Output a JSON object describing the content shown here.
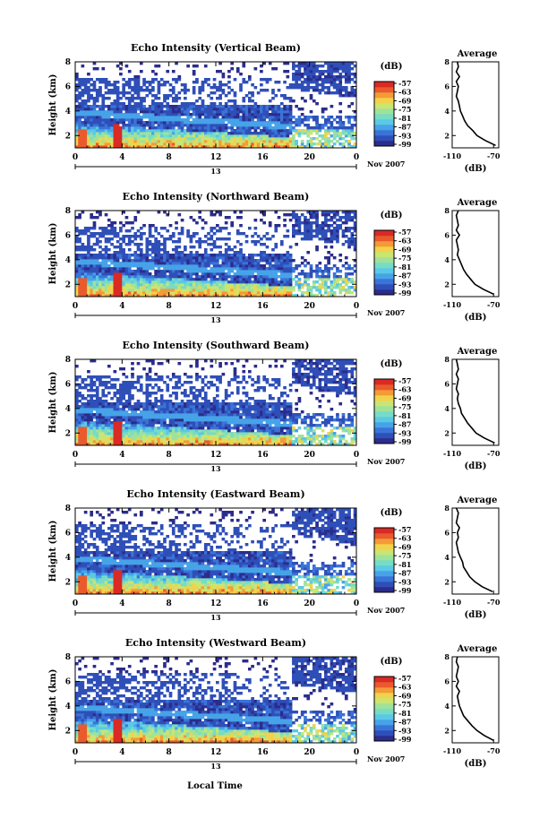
{
  "figure": {
    "common_xlabel": "Local Time",
    "date_label": "Nov 2007",
    "day_label": "13",
    "colorbar_unit": "(dB)",
    "colorbar_ticks": [
      "-57",
      "-63",
      "-69",
      "-75",
      "-81",
      "-87",
      "-93",
      "-99"
    ],
    "colorbar_colors": [
      "#2b2c8c",
      "#2f4fb8",
      "#3a74d8",
      "#47a3e8",
      "#5ac9e6",
      "#76dcc6",
      "#a0e29a",
      "#cbe572",
      "#f2d24a",
      "#f49a38",
      "#ea5a2c",
      "#d92a24"
    ],
    "profile_title": "Average",
    "profile_xlabel": "(dB)",
    "profile_xticks": [
      "-110",
      "-70"
    ],
    "profile_yticks": [
      "2",
      "4",
      "6",
      "8"
    ]
  },
  "chart_data": [
    {
      "type": "heatmap",
      "title": "Echo Intensity (Vertical Beam)",
      "ylabel": "Height (km)",
      "xlabel": "",
      "xticks": [
        "0",
        "4",
        "8",
        "12",
        "16",
        "20",
        "0"
      ],
      "yticks": [
        "2",
        "4",
        "6",
        "8"
      ],
      "xlim": [
        0,
        24
      ],
      "ylim": [
        1,
        8
      ],
      "colorbar_range_db": [
        -99,
        -57
      ],
      "profile": {
        "title": "Average",
        "xlim": [
          -110,
          -65
        ],
        "heights": [
          1.2,
          1.6,
          2.0,
          2.4,
          2.8,
          3.2,
          3.6,
          4.0,
          4.4,
          4.8,
          5.2,
          5.6,
          6.0,
          6.4,
          6.8,
          7.2,
          7.6,
          8.0
        ],
        "values": [
          -68,
          -78,
          -86,
          -90,
          -95,
          -98,
          -100,
          -102,
          -103,
          -104,
          -106,
          -105,
          -104,
          -106,
          -103,
          -106,
          -104,
          -105
        ]
      }
    },
    {
      "type": "heatmap",
      "title": "Echo Intensity (Northward Beam)",
      "ylabel": "Height (km)",
      "xlabel": "",
      "xticks": [
        "0",
        "4",
        "8",
        "12",
        "16",
        "20",
        "0"
      ],
      "yticks": [
        "2",
        "4",
        "6",
        "8"
      ],
      "xlim": [
        0,
        24
      ],
      "ylim": [
        1,
        8
      ],
      "colorbar_range_db": [
        -99,
        -57
      ],
      "profile": {
        "title": "Average",
        "xlim": [
          -110,
          -65
        ],
        "heights": [
          1.2,
          1.6,
          2.0,
          2.4,
          2.8,
          3.2,
          3.6,
          4.0,
          4.4,
          4.8,
          5.2,
          5.6,
          6.0,
          6.4,
          6.8,
          7.2,
          7.6,
          8.0
        ],
        "values": [
          -70,
          -80,
          -88,
          -92,
          -96,
          -99,
          -101,
          -103,
          -105,
          -104,
          -105,
          -106,
          -103,
          -106,
          -104,
          -105,
          -106,
          -104
        ]
      }
    },
    {
      "type": "heatmap",
      "title": "Echo Intensity (Southward Beam)",
      "ylabel": "Height (km)",
      "xlabel": "",
      "xticks": [
        "0",
        "4",
        "8",
        "12",
        "16",
        "20",
        "0"
      ],
      "yticks": [
        "2",
        "4",
        "6",
        "8"
      ],
      "xlim": [
        0,
        24
      ],
      "ylim": [
        1,
        8
      ],
      "colorbar_range_db": [
        -99,
        -57
      ],
      "profile": {
        "title": "Average",
        "xlim": [
          -110,
          -65
        ],
        "heights": [
          1.2,
          1.6,
          2.0,
          2.4,
          2.8,
          3.2,
          3.6,
          4.0,
          4.4,
          4.8,
          5.2,
          5.6,
          6.0,
          6.4,
          6.8,
          7.2,
          7.6,
          8.0
        ],
        "values": [
          -69,
          -79,
          -87,
          -91,
          -95,
          -98,
          -101,
          -102,
          -104,
          -105,
          -104,
          -106,
          -105,
          -104,
          -106,
          -104,
          -105,
          -106
        ]
      }
    },
    {
      "type": "heatmap",
      "title": "Echo Intensity (Eastward Beam)",
      "ylabel": "Height (km)",
      "xlabel": "",
      "xticks": [
        "0",
        "4",
        "8",
        "12",
        "16",
        "20",
        "0"
      ],
      "yticks": [
        "2",
        "4",
        "6",
        "8"
      ],
      "xlim": [
        0,
        24
      ],
      "ylim": [
        1,
        8
      ],
      "colorbar_range_db": [
        -99,
        -57
      ],
      "profile": {
        "title": "Average",
        "xlim": [
          -110,
          -65
        ],
        "heights": [
          1.2,
          1.6,
          2.0,
          2.4,
          2.8,
          3.2,
          3.6,
          4.0,
          4.4,
          4.8,
          5.2,
          5.6,
          6.0,
          6.4,
          6.8,
          7.2,
          7.6,
          8.0
        ],
        "values": [
          -71,
          -81,
          -88,
          -93,
          -96,
          -99,
          -100,
          -102,
          -104,
          -105,
          -106,
          -104,
          -105,
          -103,
          -106,
          -105,
          -104,
          -106
        ]
      }
    },
    {
      "type": "heatmap",
      "title": "Echo Intensity (Westward Beam)",
      "ylabel": "Height (km)",
      "xlabel": "Local Time",
      "xticks": [
        "0",
        "4",
        "8",
        "12",
        "16",
        "20",
        "0"
      ],
      "yticks": [
        "2",
        "4",
        "6",
        "8"
      ],
      "xlim": [
        0,
        24
      ],
      "ylim": [
        1,
        8
      ],
      "colorbar_range_db": [
        -99,
        -57
      ],
      "profile": {
        "title": "Average",
        "xlim": [
          -110,
          -65
        ],
        "heights": [
          1.2,
          1.6,
          2.0,
          2.4,
          2.8,
          3.2,
          3.6,
          4.0,
          4.4,
          4.8,
          5.2,
          5.6,
          6.0,
          6.4,
          6.8,
          7.2,
          7.6,
          8.0
        ],
        "values": [
          -70,
          -79,
          -86,
          -91,
          -95,
          -99,
          -101,
          -103,
          -104,
          -105,
          -103,
          -106,
          -104,
          -106,
          -105,
          -104,
          -106,
          -105
        ]
      }
    }
  ]
}
